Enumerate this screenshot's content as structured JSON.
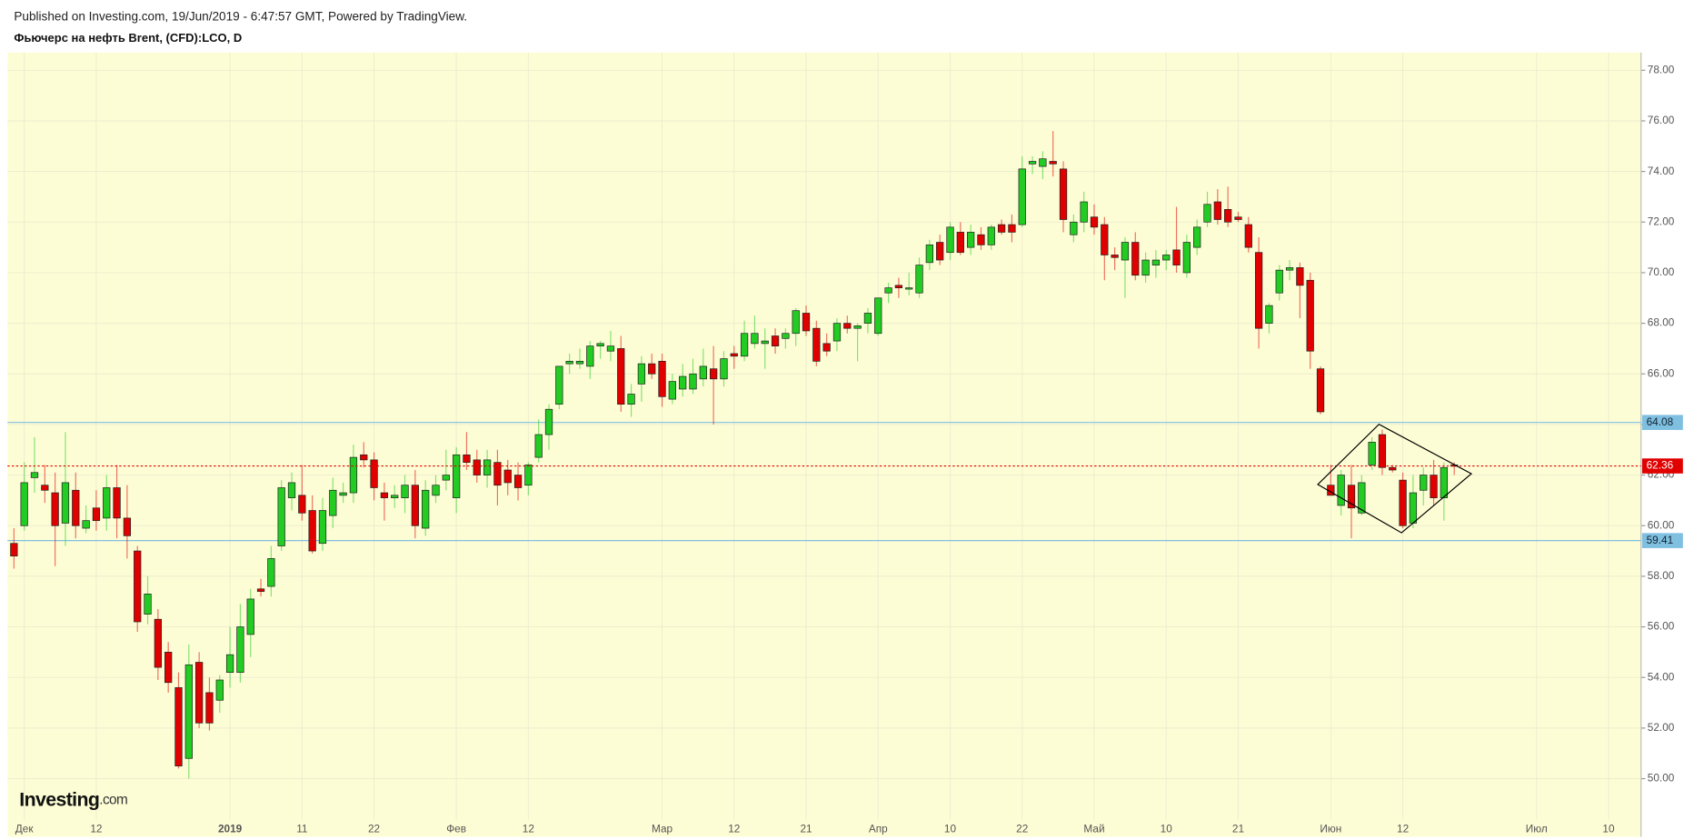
{
  "header": {
    "published": "Published on Investing.com, 19/Jun/2019 - 6:47:57 GMT, Powered by TradingView.",
    "title": "Фьючерс на нефть Brent, (CFD):LCO, D"
  },
  "logo": {
    "name": "Investing",
    "suffix": ".com"
  },
  "chart_data": {
    "type": "candlestick",
    "categories": [
      null,
      "Дек",
      null,
      null,
      null,
      null,
      null,
      null,
      "12",
      null,
      null,
      null,
      null,
      null,
      null,
      null,
      null,
      null,
      null,
      null,
      null,
      "2019",
      null,
      null,
      null,
      null,
      null,
      null,
      "11",
      null,
      null,
      null,
      null,
      null,
      null,
      "22",
      null,
      null,
      null,
      null,
      null,
      null,
      null,
      "Фев",
      null,
      null,
      null,
      null,
      null,
      null,
      "12",
      null,
      null,
      null,
      null,
      null,
      null,
      null,
      null,
      null,
      null,
      null,
      null,
      "Мар",
      null,
      null,
      null,
      null,
      null,
      null,
      "12",
      null,
      null,
      null,
      null,
      null,
      null,
      "21",
      null,
      null,
      null,
      null,
      null,
      null,
      "Апр",
      null,
      null,
      null,
      null,
      null,
      null,
      "10",
      null,
      null,
      null,
      null,
      null,
      null,
      "22",
      null,
      null,
      null,
      null,
      null,
      null,
      "Май",
      null,
      null,
      null,
      null,
      null,
      null,
      "10",
      null,
      null,
      null,
      null,
      null,
      null,
      "21",
      null,
      null,
      null,
      null,
      null,
      null,
      null,
      null,
      "Июн",
      null,
      null,
      null,
      null,
      null,
      null,
      "12",
      null,
      null,
      null,
      null,
      null,
      null,
      null,
      null,
      null,
      null,
      null,
      null,
      "Июл",
      null,
      null,
      null,
      null,
      null,
      null,
      "10",
      null,
      null,
      null
    ],
    "ohlc": [
      [
        59.3,
        59.9,
        58.3,
        58.8
      ],
      [
        60.0,
        62.5,
        59.8,
        61.7
      ],
      [
        61.9,
        63.5,
        61.3,
        62.1
      ],
      [
        61.6,
        62.4,
        60.9,
        61.4
      ],
      [
        61.3,
        62.1,
        58.4,
        60.0
      ],
      [
        60.1,
        63.7,
        59.2,
        61.7
      ],
      [
        61.4,
        62.1,
        59.5,
        60.0
      ],
      [
        59.9,
        60.8,
        59.7,
        60.2
      ],
      [
        60.7,
        61.4,
        59.8,
        60.2
      ],
      [
        60.3,
        62.0,
        59.8,
        61.5
      ],
      [
        61.5,
        62.4,
        59.5,
        60.3
      ],
      [
        60.3,
        61.6,
        58.7,
        59.6
      ],
      [
        59.0,
        59.2,
        55.8,
        56.2
      ],
      [
        56.5,
        58.0,
        56.1,
        57.3
      ],
      [
        56.3,
        56.7,
        53.9,
        54.4
      ],
      [
        55.0,
        55.4,
        53.4,
        53.8
      ],
      [
        53.6,
        54.2,
        50.4,
        50.5
      ],
      [
        50.8,
        55.3,
        50.0,
        54.5
      ],
      [
        54.6,
        55.0,
        52.0,
        52.2
      ],
      [
        53.4,
        54.0,
        51.9,
        52.2
      ],
      [
        53.1,
        54.1,
        52.6,
        53.9
      ],
      [
        54.2,
        56.0,
        53.6,
        54.9
      ],
      [
        54.2,
        56.9,
        53.8,
        56.0
      ],
      [
        55.7,
        57.5,
        54.8,
        57.1
      ],
      [
        57.5,
        57.9,
        57.2,
        57.4
      ],
      [
        57.6,
        59.2,
        57.2,
        58.7
      ],
      [
        59.2,
        61.8,
        59.0,
        61.5
      ],
      [
        61.1,
        62.1,
        60.6,
        61.7
      ],
      [
        61.2,
        62.4,
        60.2,
        60.5
      ],
      [
        60.6,
        61.2,
        58.9,
        59.0
      ],
      [
        59.3,
        61.1,
        59.0,
        60.6
      ],
      [
        60.4,
        61.9,
        59.9,
        61.4
      ],
      [
        61.2,
        61.7,
        60.9,
        61.3
      ],
      [
        61.3,
        63.2,
        60.9,
        62.7
      ],
      [
        62.8,
        63.3,
        62.3,
        62.6
      ],
      [
        62.6,
        62.9,
        61.0,
        61.5
      ],
      [
        61.3,
        61.7,
        60.2,
        61.1
      ],
      [
        61.1,
        61.6,
        60.7,
        61.2
      ],
      [
        61.1,
        62.0,
        60.5,
        61.6
      ],
      [
        61.6,
        62.2,
        59.5,
        60.0
      ],
      [
        59.9,
        61.8,
        59.6,
        61.4
      ],
      [
        61.2,
        62.0,
        60.9,
        61.6
      ],
      [
        61.8,
        63.0,
        61.4,
        62.0
      ],
      [
        61.1,
        63.1,
        60.5,
        62.8
      ],
      [
        62.8,
        63.7,
        62.2,
        62.5
      ],
      [
        62.6,
        63.0,
        61.7,
        62.0
      ],
      [
        62.0,
        63.0,
        61.5,
        62.6
      ],
      [
        62.5,
        63.0,
        60.8,
        61.6
      ],
      [
        62.2,
        62.6,
        61.2,
        61.7
      ],
      [
        62.0,
        62.5,
        61.0,
        61.5
      ],
      [
        61.6,
        62.5,
        61.2,
        62.4
      ],
      [
        62.7,
        64.2,
        62.5,
        63.6
      ],
      [
        63.6,
        64.8,
        63.0,
        64.6
      ],
      [
        64.8,
        66.3,
        64.6,
        66.3
      ],
      [
        66.4,
        66.8,
        66.0,
        66.5
      ],
      [
        66.4,
        67.0,
        66.2,
        66.5
      ],
      [
        66.3,
        67.3,
        65.8,
        67.1
      ],
      [
        67.1,
        67.3,
        66.6,
        67.2
      ],
      [
        66.9,
        67.7,
        66.5,
        67.1
      ],
      [
        67.0,
        67.5,
        64.5,
        64.8
      ],
      [
        64.8,
        65.6,
        64.3,
        65.2
      ],
      [
        65.6,
        66.7,
        64.9,
        66.4
      ],
      [
        66.4,
        66.8,
        65.8,
        66.0
      ],
      [
        66.5,
        66.8,
        64.7,
        65.1
      ],
      [
        65.0,
        66.0,
        64.8,
        65.7
      ],
      [
        65.4,
        66.4,
        65.1,
        65.9
      ],
      [
        65.4,
        66.6,
        65.2,
        66.0
      ],
      [
        65.8,
        67.0,
        65.5,
        66.3
      ],
      [
        66.2,
        67.1,
        64.0,
        65.8
      ],
      [
        65.8,
        66.9,
        65.5,
        66.6
      ],
      [
        66.8,
        67.1,
        66.2,
        66.7
      ],
      [
        66.7,
        68.1,
        66.5,
        67.6
      ],
      [
        67.2,
        68.3,
        67.0,
        67.6
      ],
      [
        67.2,
        67.8,
        66.2,
        67.3
      ],
      [
        67.5,
        67.8,
        66.8,
        67.1
      ],
      [
        67.4,
        67.8,
        67.0,
        67.6
      ],
      [
        67.6,
        68.6,
        67.1,
        68.5
      ],
      [
        68.4,
        68.7,
        67.5,
        67.7
      ],
      [
        67.8,
        68.1,
        66.3,
        66.5
      ],
      [
        67.2,
        67.6,
        66.7,
        66.9
      ],
      [
        67.3,
        68.2,
        66.9,
        68.0
      ],
      [
        68.0,
        68.3,
        67.6,
        67.8
      ],
      [
        67.8,
        68.0,
        66.5,
        67.9
      ],
      [
        68.0,
        68.6,
        67.6,
        68.4
      ],
      [
        67.6,
        69.0,
        67.5,
        69.0
      ],
      [
        69.2,
        69.6,
        68.8,
        69.4
      ],
      [
        69.5,
        69.8,
        69.0,
        69.4
      ],
      [
        69.4,
        70.0,
        69.1,
        69.4
      ],
      [
        69.2,
        70.6,
        69.0,
        70.3
      ],
      [
        70.4,
        71.3,
        70.1,
        71.1
      ],
      [
        71.2,
        71.5,
        70.3,
        70.5
      ],
      [
        70.8,
        72.0,
        70.5,
        71.8
      ],
      [
        71.6,
        72.0,
        70.7,
        70.8
      ],
      [
        71.0,
        71.9,
        70.7,
        71.6
      ],
      [
        71.5,
        71.8,
        70.9,
        71.1
      ],
      [
        71.1,
        71.9,
        70.9,
        71.8
      ],
      [
        71.9,
        72.1,
        71.5,
        71.6
      ],
      [
        71.9,
        72.3,
        71.2,
        71.6
      ],
      [
        71.9,
        74.6,
        71.8,
        74.1
      ],
      [
        74.3,
        74.6,
        73.9,
        74.4
      ],
      [
        74.2,
        74.8,
        73.7,
        74.5
      ],
      [
        74.4,
        75.6,
        73.8,
        74.3
      ],
      [
        74.1,
        74.4,
        71.6,
        72.1
      ],
      [
        71.5,
        72.3,
        71.2,
        72.0
      ],
      [
        72.0,
        73.2,
        71.6,
        72.8
      ],
      [
        72.2,
        72.7,
        71.5,
        71.8
      ],
      [
        71.9,
        72.2,
        69.7,
        70.7
      ],
      [
        70.7,
        71.0,
        70.1,
        70.6
      ],
      [
        70.5,
        71.4,
        69.0,
        71.2
      ],
      [
        71.2,
        71.6,
        69.7,
        69.9
      ],
      [
        69.9,
        70.8,
        69.6,
        70.5
      ],
      [
        70.3,
        70.9,
        69.8,
        70.5
      ],
      [
        70.5,
        70.9,
        70.1,
        70.7
      ],
      [
        70.9,
        72.6,
        70.0,
        70.3
      ],
      [
        70.0,
        71.5,
        69.8,
        71.2
      ],
      [
        71.0,
        72.1,
        70.7,
        71.8
      ],
      [
        72.0,
        73.2,
        71.8,
        72.7
      ],
      [
        72.8,
        73.3,
        71.9,
        72.1
      ],
      [
        72.5,
        73.4,
        71.8,
        72.0
      ],
      [
        72.2,
        72.4,
        72.0,
        72.1
      ],
      [
        71.9,
        72.2,
        70.8,
        71.0
      ],
      [
        70.8,
        71.4,
        67.0,
        67.8
      ],
      [
        68.0,
        68.8,
        67.6,
        68.7
      ],
      [
        69.2,
        70.3,
        68.9,
        70.1
      ],
      [
        70.1,
        70.5,
        69.7,
        70.2
      ],
      [
        70.2,
        70.4,
        68.2,
        69.5
      ],
      [
        69.7,
        70.0,
        66.2,
        66.9
      ],
      [
        66.2,
        66.3,
        64.4,
        64.5
      ],
      [
        61.6,
        62.4,
        61.2,
        61.2
      ],
      [
        60.8,
        62.2,
        60.4,
        62.0
      ],
      [
        61.6,
        62.4,
        59.5,
        60.7
      ],
      [
        60.5,
        62.0,
        60.4,
        61.7
      ],
      [
        62.4,
        63.5,
        62.2,
        63.3
      ],
      [
        63.6,
        63.8,
        62.0,
        62.3
      ],
      [
        62.3,
        62.4,
        62.1,
        62.2
      ],
      [
        61.8,
        62.1,
        59.9,
        60.0
      ],
      [
        60.1,
        62.0,
        59.9,
        61.3
      ],
      [
        61.4,
        62.3,
        60.8,
        62.0
      ],
      [
        62.0,
        62.6,
        60.8,
        61.1
      ],
      [
        61.1,
        62.5,
        60.2,
        62.3
      ],
      [
        62.4,
        62.5,
        62.0,
        62.36
      ],
      null,
      null,
      null,
      null,
      null,
      null,
      null,
      null,
      null,
      null,
      null,
      null,
      null,
      null,
      null,
      null,
      null,
      null
    ],
    "up_color": "#22cc22",
    "down_color": "#e00000",
    "ylim": [
      47.7,
      78.7
    ],
    "yticks": [
      {
        "value": 50,
        "label": "50.00"
      },
      {
        "value": 52,
        "label": "52.00"
      },
      {
        "value": 54,
        "label": "54.00"
      },
      {
        "value": 56,
        "label": "56.00"
      },
      {
        "value": 58,
        "label": "58.00"
      },
      {
        "value": 60,
        "label": "60.00"
      },
      {
        "value": 62,
        "label": "62.00"
      },
      {
        "value": 64,
        "label": "64.00"
      },
      {
        "value": 66,
        "label": "66.00"
      },
      {
        "value": 68,
        "label": "68.00"
      },
      {
        "value": 70,
        "label": "70.00"
      },
      {
        "value": 72,
        "label": "72.00"
      },
      {
        "value": 74,
        "label": "74.00"
      },
      {
        "value": 76,
        "label": "76.00"
      },
      {
        "value": 78,
        "label": "78.00"
      }
    ],
    "horizontal_lines": [
      {
        "value": 64.08,
        "color": "#7fc0e0"
      },
      {
        "value": 59.41,
        "color": "#7fc0e0"
      }
    ],
    "last_price": {
      "value": 62.36,
      "color": "#e00000"
    },
    "grid": true
  }
}
